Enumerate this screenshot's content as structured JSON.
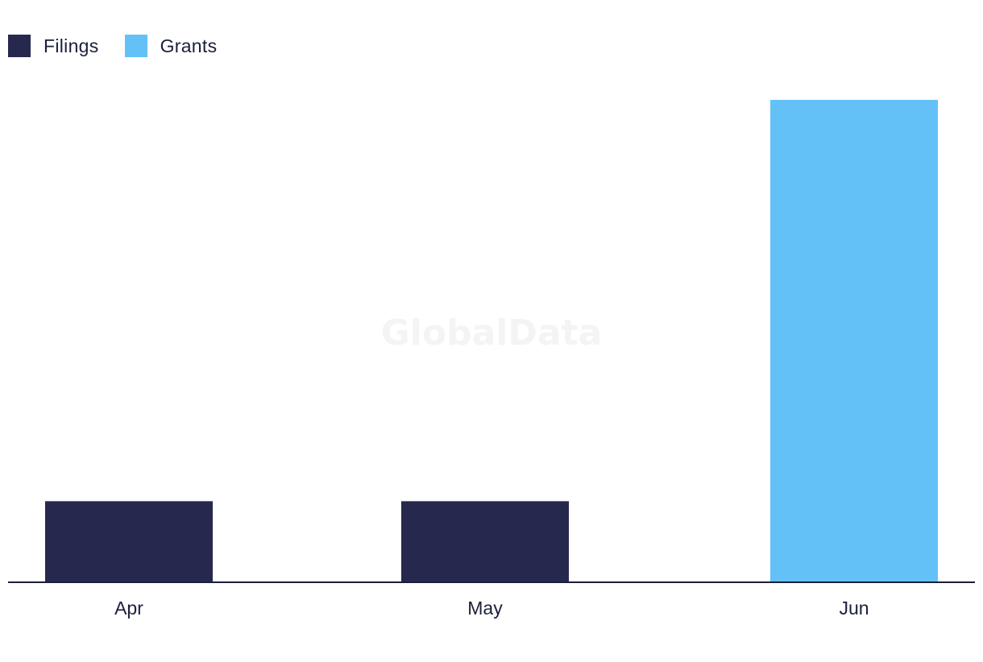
{
  "legend": [
    {
      "name": "Filings",
      "color": "#27284d"
    },
    {
      "name": "Grants",
      "color": "#63c1f8"
    }
  ],
  "watermark": "GlobalData",
  "chart_data": {
    "type": "bar",
    "categories": [
      "Apr",
      "May",
      "Jun"
    ],
    "series": [
      {
        "name": "Filings",
        "values": [
          1,
          1,
          0
        ],
        "color": "#27284d"
      },
      {
        "name": "Grants",
        "values": [
          0,
          0,
          6
        ],
        "color": "#63c1f8"
      }
    ],
    "ylim": [
      0,
      6
    ],
    "grid": false,
    "legend_position": "top-left",
    "xlabel": "",
    "ylabel": ""
  }
}
